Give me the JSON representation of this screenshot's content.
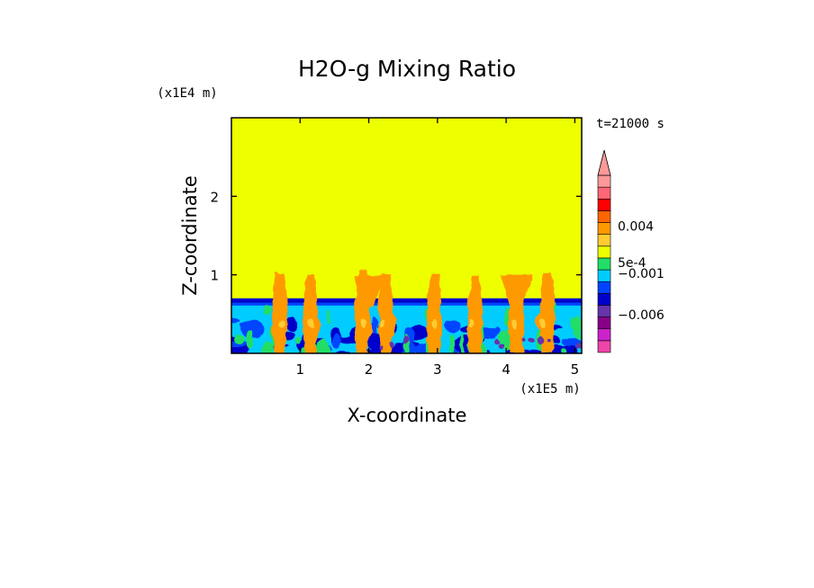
{
  "chart_data": {
    "type": "heatmap",
    "title": "H2O-g Mixing Ratio",
    "xlabel": "X-coordinate",
    "ylabel": "Z-coordinate",
    "x_units": "(x1E5 m)",
    "y_units": "(x1E4 m)",
    "time_label": "t=21000 s",
    "xlim": [
      0,
      5.1
    ],
    "ylim": [
      0,
      3.0
    ],
    "x_ticks": [
      1,
      2,
      3,
      4,
      5
    ],
    "x_tick_labels": [
      "1",
      "2",
      "3",
      "4",
      "5"
    ],
    "y_ticks": [
      1,
      2
    ],
    "y_tick_labels": [
      "1",
      "2"
    ],
    "background_level_color": "#eeff00",
    "layer_top_z": 0.7,
    "plumes_x": [
      0.7,
      1.15,
      1.9,
      2.25,
      2.95,
      3.55,
      4.15,
      4.6
    ],
    "colorbar": {
      "colors": [
        "#ee44aa",
        "#cc22cc",
        "#880088",
        "#6633aa",
        "#0000cc",
        "#0044ff",
        "#00ccff",
        "#22dd66",
        "#eeff00",
        "#ffcc33",
        "#ff9900",
        "#ff6600",
        "#ff0000",
        "#ff6677",
        "#ff9999"
      ],
      "labels": [
        {
          "text": "0.004",
          "level": 10.7
        },
        {
          "text": "5e-4",
          "level": 7.6
        },
        {
          "text": "−0.001",
          "level": 6.7
        },
        {
          "text": "−0.006",
          "level": 3.2
        }
      ],
      "extend_top": true
    }
  }
}
